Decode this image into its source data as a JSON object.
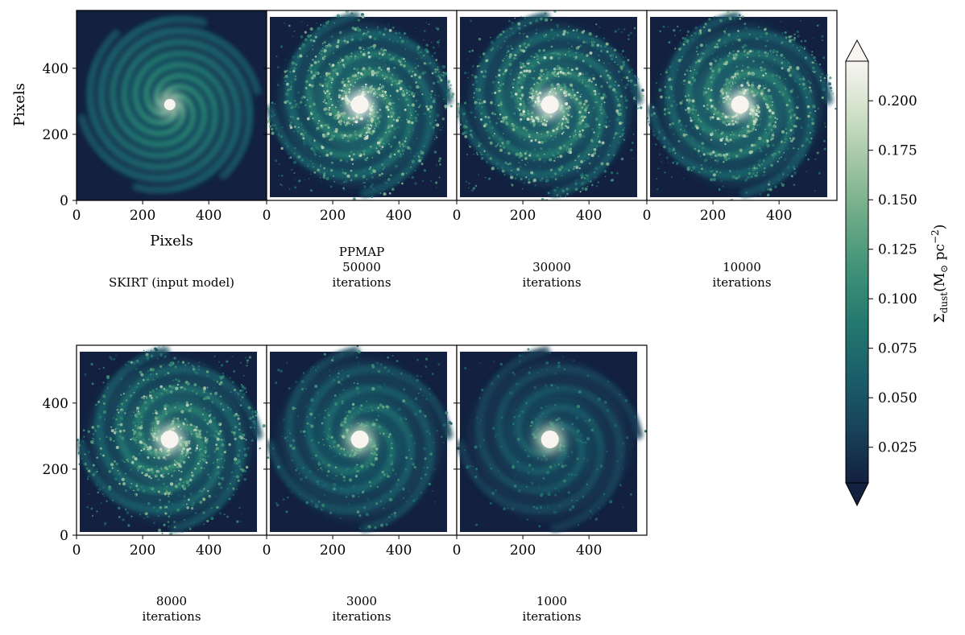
{
  "chart_data": {
    "type": "heatmap",
    "xlabel": "Pixels",
    "ylabel": "Pixels",
    "xlim": [
      0,
      575
    ],
    "ylim": [
      0,
      575
    ],
    "xticks": [
      "0",
      "200",
      "400"
    ],
    "yticks": [
      "0",
      "200",
      "400"
    ],
    "panels": [
      {
        "caption": [
          "SKIRT (input model)"
        ],
        "style": "model"
      },
      {
        "caption": [
          "PPMAP",
          "50000",
          "iterations"
        ],
        "style": "ppmap",
        "clumpiness": 1.0,
        "brightness": 1.0
      },
      {
        "caption": [
          "30000",
          "iterations"
        ],
        "style": "ppmap",
        "clumpiness": 0.95,
        "brightness": 0.97
      },
      {
        "caption": [
          "10000",
          "iterations"
        ],
        "style": "ppmap",
        "clumpiness": 0.85,
        "brightness": 0.95
      },
      {
        "caption": [
          "8000",
          "iterations"
        ],
        "style": "ppmap",
        "clumpiness": 0.8,
        "brightness": 0.92
      },
      {
        "caption": [
          "3000",
          "iterations"
        ],
        "style": "ppmap",
        "clumpiness": 0.35,
        "brightness": 0.72
      },
      {
        "caption": [
          "1000",
          "iterations"
        ],
        "style": "ppmap",
        "clumpiness": 0.15,
        "brightness": 0.52
      }
    ],
    "colorbar": {
      "label_main": "Σ",
      "label_sub": "dust",
      "label_units": "(M",
      "label_sun": "⊙",
      "label_pc": " pc",
      "label_exp": "−2",
      "label_close": ")",
      "range": [
        0.007,
        0.22
      ],
      "ticks": [
        "0.025",
        "0.050",
        "0.075",
        "0.100",
        "0.125",
        "0.150",
        "0.175",
        "0.200"
      ],
      "tick_values": [
        0.025,
        0.05,
        0.075,
        0.1,
        0.125,
        0.15,
        0.175,
        0.2
      ],
      "extend": "both",
      "colormap": [
        "#13203f",
        "#184259",
        "#1a5e6a",
        "#23786f",
        "#3e9177",
        "#6aa986",
        "#9ec3a1",
        "#cfe0c8",
        "#f8f5f1"
      ]
    }
  }
}
